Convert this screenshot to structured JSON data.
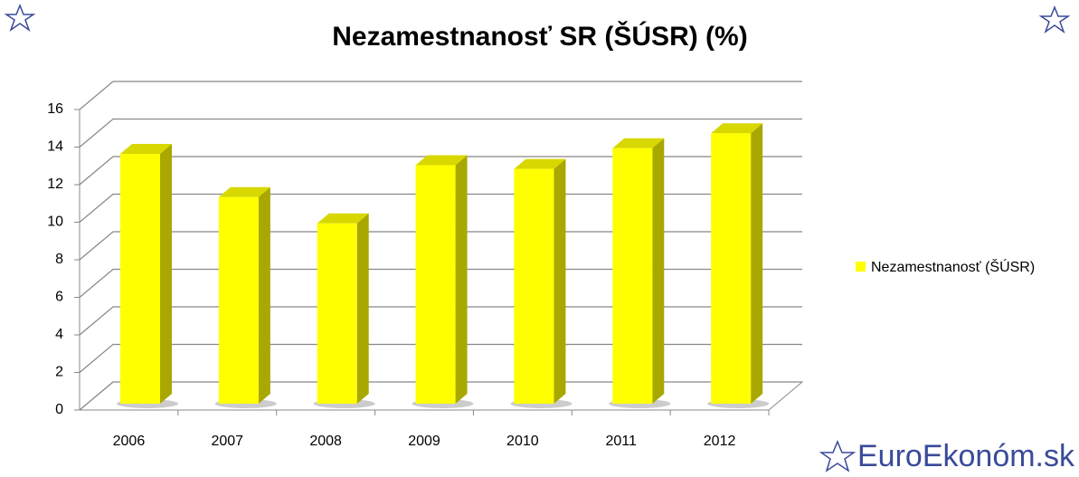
{
  "chart_data": {
    "type": "bar3d",
    "title": "Nezamestnanosť SR (ŠÚSR) (%)",
    "categories": [
      "2006",
      "2007",
      "2008",
      "2009",
      "2010",
      "2011",
      "2012"
    ],
    "series": [
      {
        "name": "Nezamestnanosť  (ŠÚSR)",
        "color": "#ffff00",
        "values": [
          13.3,
          11.0,
          9.6,
          12.7,
          12.5,
          13.6,
          14.4
        ]
      }
    ],
    "ylim": [
      0,
      16
    ],
    "yticks": [
      0,
      2,
      4,
      6,
      8,
      10,
      12,
      14,
      16
    ],
    "grid": true,
    "legend": "right"
  },
  "watermark": "EuroEkonóm.sk"
}
